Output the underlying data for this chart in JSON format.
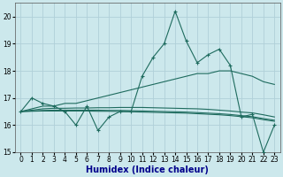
{
  "xlabel": "Humidex (Indice chaleur)",
  "bg_color": "#cce8ec",
  "grid_color": "#b0d0d8",
  "line_color": "#1e6b5e",
  "x": [
    0,
    1,
    2,
    3,
    4,
    5,
    6,
    7,
    8,
    9,
    10,
    11,
    12,
    13,
    14,
    15,
    16,
    17,
    18,
    19,
    20,
    21,
    22,
    23
  ],
  "y_main": [
    16.5,
    17.0,
    16.8,
    16.7,
    16.5,
    16.0,
    16.7,
    15.8,
    16.3,
    16.5,
    16.5,
    17.8,
    18.5,
    19.0,
    20.2,
    19.1,
    18.3,
    18.6,
    18.8,
    18.2,
    16.3,
    16.4,
    15.0,
    16.0
  ],
  "y_trend_up": [
    16.5,
    16.6,
    16.7,
    16.7,
    16.8,
    16.8,
    16.9,
    17.0,
    17.1,
    17.2,
    17.3,
    17.4,
    17.5,
    17.6,
    17.7,
    17.8,
    17.9,
    17.9,
    18.0,
    18.0,
    17.9,
    17.8,
    17.6,
    17.5
  ],
  "y_flat1": [
    16.5,
    16.55,
    16.6,
    16.62,
    16.62,
    16.63,
    16.63,
    16.64,
    16.64,
    16.65,
    16.65,
    16.65,
    16.64,
    16.63,
    16.62,
    16.61,
    16.6,
    16.58,
    16.55,
    16.52,
    16.48,
    16.45,
    16.38,
    16.3
  ],
  "y_flat2": [
    16.5,
    16.52,
    16.54,
    16.55,
    16.55,
    16.55,
    16.55,
    16.55,
    16.54,
    16.54,
    16.53,
    16.52,
    16.51,
    16.5,
    16.49,
    16.48,
    16.46,
    16.44,
    16.42,
    16.39,
    16.35,
    16.31,
    16.24,
    16.18
  ],
  "y_flat3": [
    16.5,
    16.51,
    16.52,
    16.52,
    16.52,
    16.52,
    16.52,
    16.51,
    16.51,
    16.5,
    16.49,
    16.48,
    16.47,
    16.46,
    16.45,
    16.44,
    16.42,
    16.4,
    16.38,
    16.35,
    16.31,
    16.27,
    16.2,
    16.14
  ],
  "ylim": [
    15,
    20.5
  ],
  "xlim": [
    -0.5,
    23.5
  ],
  "yticks": [
    15,
    16,
    17,
    18,
    19,
    20
  ],
  "xticks": [
    0,
    1,
    2,
    3,
    4,
    5,
    6,
    7,
    8,
    9,
    10,
    11,
    12,
    13,
    14,
    15,
    16,
    17,
    18,
    19,
    20,
    21,
    22,
    23
  ],
  "xlabel_color": "#00008b",
  "xlabel_fontsize": 7,
  "tick_fontsize": 5.5
}
